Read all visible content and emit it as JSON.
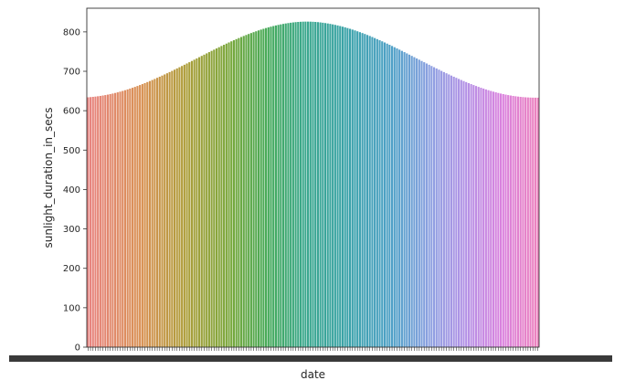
{
  "chart_data": {
    "type": "bar",
    "xlabel": "date",
    "ylabel": "sunlight_duration_in_secs",
    "ylim": [
      0,
      860
    ],
    "yticks": [
      0,
      100,
      200,
      300,
      400,
      500,
      600,
      700,
      800
    ],
    "grid": false,
    "legend": "none",
    "n_bars": 183,
    "x_tick_labels_note": "overlapping unreadable date labels",
    "values": [
      634,
      634.5,
      635.1,
      635.8,
      636.6,
      637.5,
      638.5,
      639.6,
      640.8,
      642.1,
      643.5,
      645,
      646.6,
      648.3,
      650.1,
      652,
      654,
      656.1,
      658.2,
      660.4,
      662.7,
      665.1,
      667.5,
      670,
      672.6,
      675.2,
      677.9,
      680.6,
      683.4,
      686.2,
      689.1,
      692,
      695,
      698,
      701,
      704.1,
      707.2,
      710.3,
      713.4,
      716.6,
      719.8,
      723,
      726.2,
      729.4,
      732.6,
      735.8,
      739,
      742.2,
      745.4,
      748.6,
      751.8,
      754.9,
      758,
      761.1,
      764.2,
      767.2,
      770.2,
      773.1,
      776,
      778.8,
      781.6,
      784.3,
      787,
      789.6,
      792.1,
      794.6,
      797,
      799.3,
      801.5,
      803.7,
      805.8,
      807.8,
      809.7,
      811.5,
      813.2,
      814.8,
      816.3,
      817.7,
      819,
      820.2,
      821.3,
      822.3,
      823.2,
      824,
      824.7,
      825.2,
      825.6,
      825.9,
      826,
      826,
      825.9,
      825.6,
      825.2,
      824.7,
      824,
      823.2,
      822.3,
      821.3,
      820.2,
      819,
      817.7,
      816.3,
      814.8,
      813.2,
      811.5,
      809.7,
      807.8,
      805.8,
      803.7,
      801.5,
      799.3,
      797,
      794.6,
      792.1,
      789.6,
      787,
      784.3,
      781.6,
      778.8,
      776,
      773.1,
      770.2,
      767.2,
      764.2,
      761.1,
      758,
      754.9,
      751.8,
      748.6,
      745.4,
      742.2,
      739,
      735.8,
      732.6,
      729.4,
      726.2,
      723,
      719.8,
      716.6,
      713.4,
      710.3,
      707.2,
      704.1,
      701,
      698,
      695,
      692,
      689.1,
      686.2,
      683.4,
      680.6,
      677.9,
      675.2,
      672.6,
      670,
      667.5,
      665.1,
      662.7,
      660.4,
      658.2,
      656.1,
      654,
      652,
      650.1,
      648.3,
      646.6,
      645,
      643.5,
      642.1,
      640.8,
      639.6,
      638.5,
      637.5,
      636.6,
      635.8,
      635.1,
      634.5,
      634,
      633.6,
      633.3,
      633.1,
      633,
      633
    ]
  }
}
